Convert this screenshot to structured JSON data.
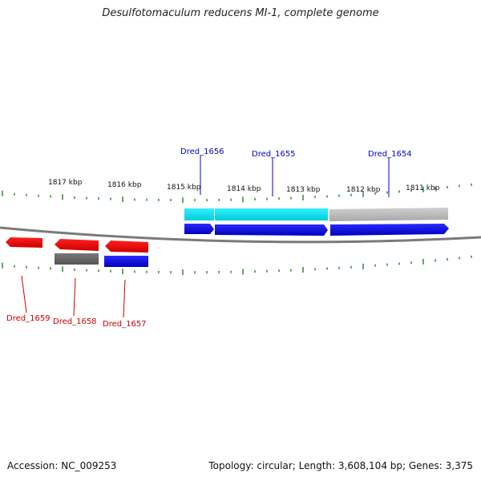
{
  "title": "Desulfotomaculum reducens MI-1, complete genome",
  "footer": {
    "accession": "Accession: NC_009253",
    "summary": "Topology: circular; Length: 3,608,104 bp; Genes: 3,375"
  },
  "scale_labels": [
    "1817 kbp",
    "1816 kbp",
    "1815 kbp",
    "1814 kbp",
    "1813 kbp",
    "1812 kbp",
    "1811 kbp"
  ],
  "genes_top": [
    {
      "label": "Dred_1656",
      "color": "#0000cc"
    },
    {
      "label": "Dred_1655",
      "color": "#0000cc"
    },
    {
      "label": "Dred_1654",
      "color": "#0000cc"
    }
  ],
  "genes_bottom": [
    {
      "label": "Dred_1659",
      "color": "#cc0000"
    },
    {
      "label": "Dred_1658",
      "color": "#cc0000"
    },
    {
      "label": "Dred_1657",
      "color": "#cc0000"
    }
  ],
  "colors": {
    "forward_gene": "#0000ee",
    "reverse_gene": "#ee0000",
    "cds_cyan": "#00e5ee",
    "cds_gray_light": "#bbbbbb",
    "cds_gray_dark": "#666666",
    "tick": "#117711",
    "backbone": "#777777"
  }
}
